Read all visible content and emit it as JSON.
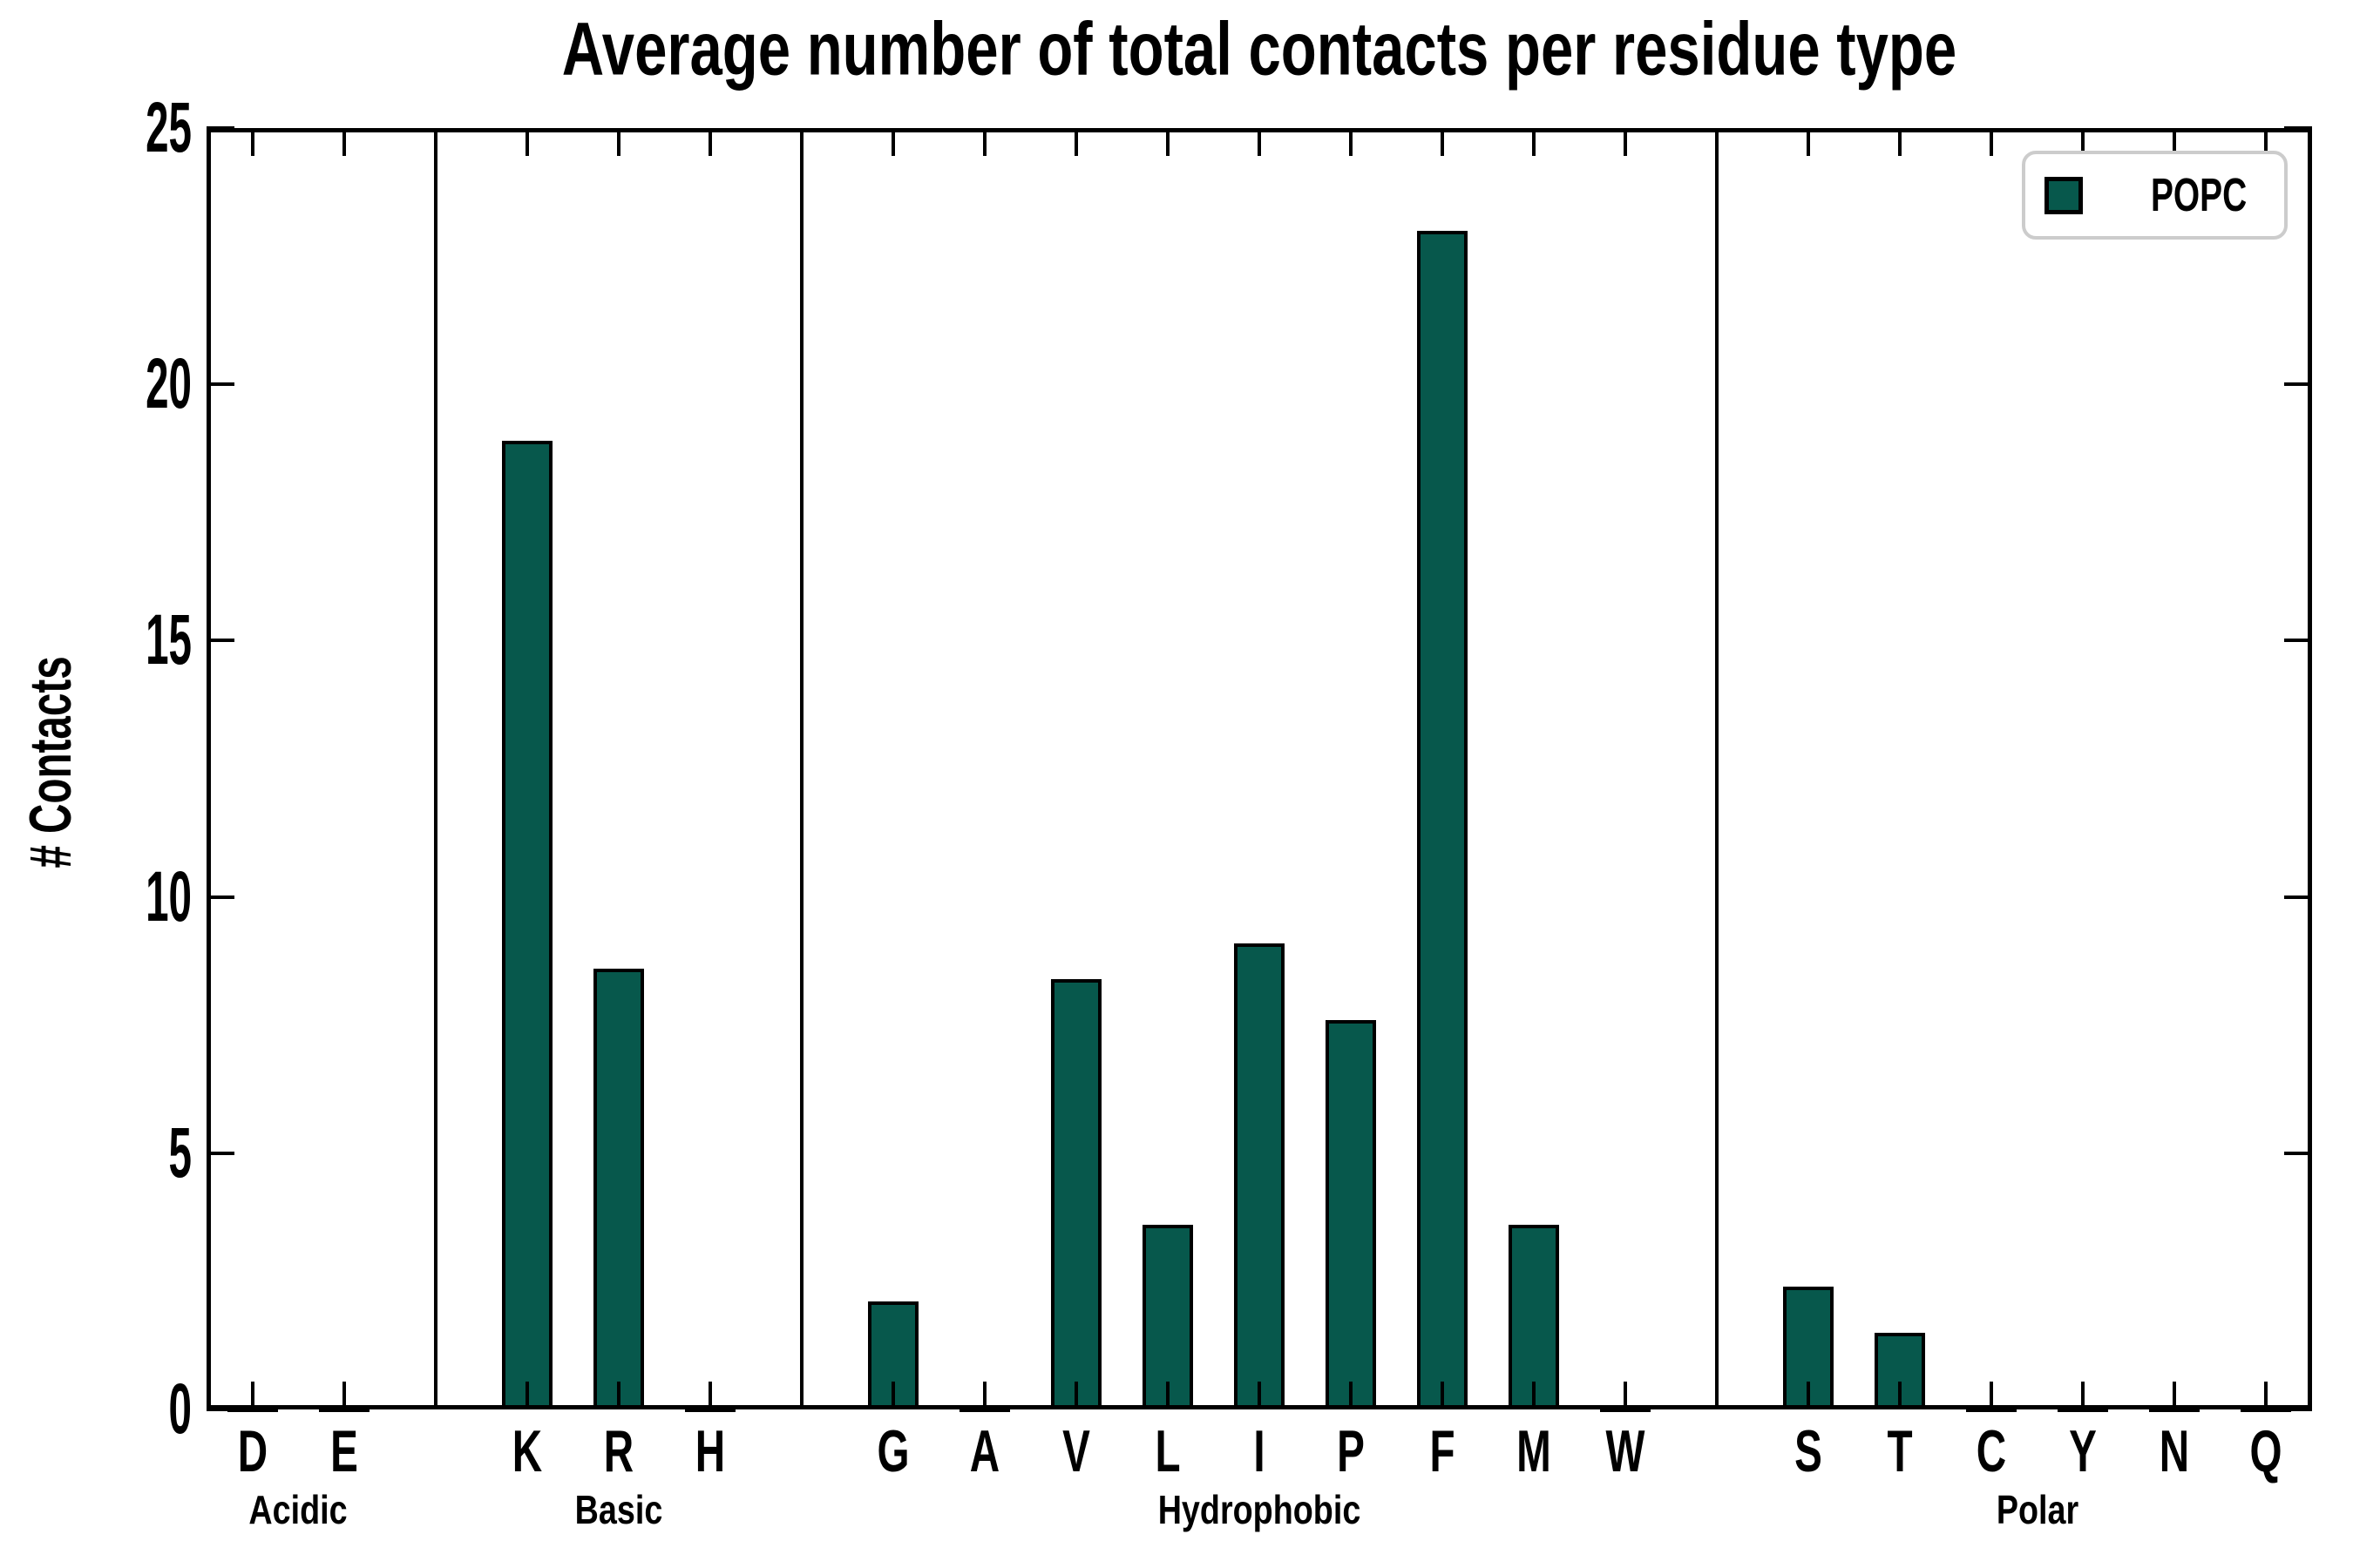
{
  "chart_data": {
    "type": "bar",
    "title": "Average number of total contacts per residue type",
    "xlabel": "",
    "ylabel": "# Contacts",
    "ylim": [
      0,
      25
    ],
    "yticks": [
      0,
      5,
      10,
      15,
      20,
      25
    ],
    "grid": false,
    "legend_position": "upper right",
    "series": [
      {
        "name": "POPC",
        "color": "#07584C",
        "edge_color": "#000000"
      }
    ],
    "categories": [
      "D",
      "E",
      "K",
      "R",
      "H",
      "G",
      "A",
      "V",
      "L",
      "I",
      "P",
      "F",
      "M",
      "W",
      "S",
      "T",
      "C",
      "Y",
      "N",
      "Q"
    ],
    "values": [
      0.06,
      0.06,
      18.9,
      8.6,
      0.06,
      2.1,
      0.06,
      8.4,
      3.6,
      9.1,
      7.6,
      23.0,
      3.6,
      0.06,
      2.4,
      1.5,
      0.06,
      0.06,
      0.06,
      0.06
    ],
    "groups": [
      {
        "label": "Acidic",
        "categories": [
          "D",
          "E"
        ]
      },
      {
        "label": "Basic",
        "categories": [
          "K",
          "R",
          "H"
        ]
      },
      {
        "label": "Hydrophobic",
        "categories": [
          "G",
          "A",
          "V",
          "L",
          "I",
          "P",
          "F",
          "M",
          "W"
        ]
      },
      {
        "label": "Polar",
        "categories": [
          "S",
          "T",
          "C",
          "Y",
          "N",
          "Q"
        ]
      }
    ]
  },
  "colors": {
    "bar_fill": "#07584C",
    "bar_edge": "#000000",
    "axis": "#000000",
    "legend_border": "#cccccc",
    "background": "#ffffff",
    "text": "#000000"
  }
}
